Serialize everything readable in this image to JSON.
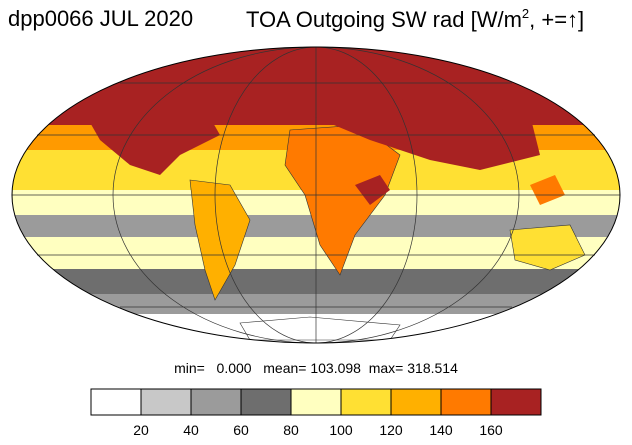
{
  "title": {
    "left": "dpp0066 JUL 2020",
    "right_prefix": "TOA Outgoing SW rad [W/m",
    "right_sup": "2",
    "right_suffix": ", +=↑]"
  },
  "stats": {
    "min_label": "min=",
    "min_value": "0.000",
    "mean_label": "mean=",
    "mean_value": "103.098",
    "max_label": "max=",
    "max_value": "318.514"
  },
  "colorbar": {
    "colors": [
      "#ffffff",
      "#c8c8c8",
      "#9b9b9b",
      "#6e6e6e",
      "#ffffc0",
      "#ffe033",
      "#ffb000",
      "#ff7a00",
      "#a82222"
    ],
    "tick_labels": [
      "20",
      "40",
      "60",
      "80",
      "100",
      "120",
      "140",
      "160"
    ]
  },
  "projection": "Mollweide",
  "graticule_color": "#333333"
}
